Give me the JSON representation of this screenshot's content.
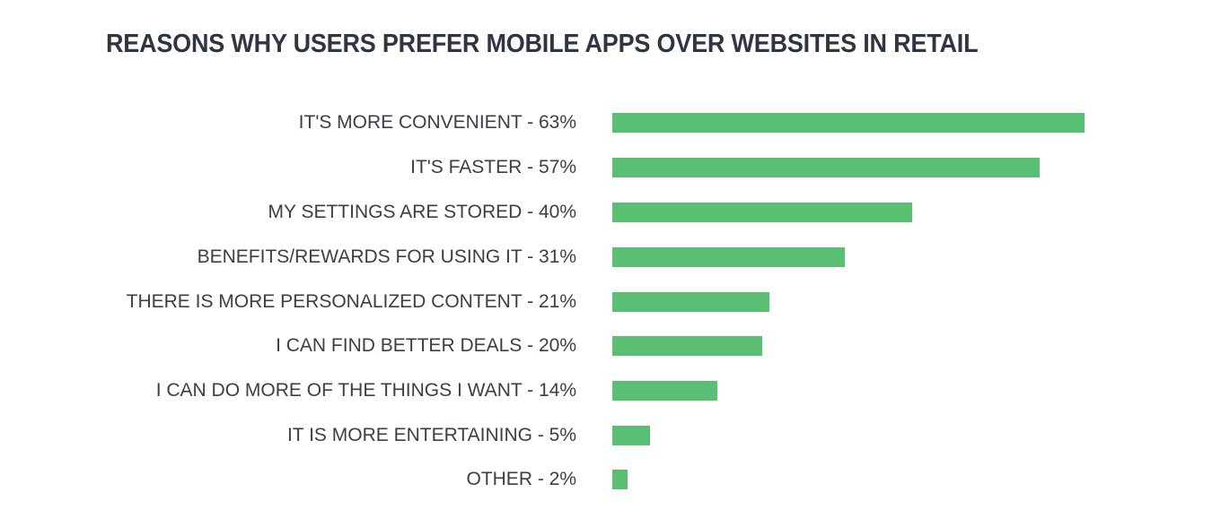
{
  "chart_title": "REASONS WHY USERS PREFER MOBILE APPS OVER WEBSITES IN RETAIL",
  "bar_color": "#5abf72",
  "rows": [
    {
      "label": "IT'S MORE CONVENIENT - 63%",
      "value": 63
    },
    {
      "label": "IT'S FASTER - 57%",
      "value": 57
    },
    {
      "label": "MY SETTINGS ARE STORED - 40%",
      "value": 40
    },
    {
      "label": "BENEFITS/REWARDS FOR USING IT - 31%",
      "value": 31
    },
    {
      "label": "THERE IS MORE PERSONALIZED CONTENT - 21%",
      "value": 21
    },
    {
      "label": "I CAN FIND BETTER DEALS - 20%",
      "value": 20
    },
    {
      "label": "I CAN DO MORE OF THE THINGS I WANT - 14%",
      "value": 14
    },
    {
      "label": "IT IS MORE ENTERTAINING - 5%",
      "value": 5
    },
    {
      "label": "OTHER - 2%",
      "value": 2
    }
  ],
  "chart_data": {
    "type": "bar",
    "orientation": "horizontal",
    "title": "REASONS WHY USERS PREFER MOBILE APPS OVER WEBSITES IN RETAIL",
    "categories": [
      "IT'S MORE CONVENIENT",
      "IT'S FASTER",
      "MY SETTINGS ARE STORED",
      "BENEFITS/REWARDS FOR USING IT",
      "THERE IS MORE PERSONALIZED CONTENT",
      "I CAN FIND BETTER DEALS",
      "I CAN DO MORE OF THE THINGS I WANT",
      "IT IS MORE ENTERTAINING",
      "OTHER"
    ],
    "values": [
      63,
      57,
      40,
      31,
      21,
      20,
      14,
      5,
      2
    ],
    "unit": "%",
    "xlabel": "",
    "ylabel": "",
    "xlim": [
      0,
      63
    ],
    "grid": false,
    "legend": null,
    "series_color": "#5abf72"
  }
}
